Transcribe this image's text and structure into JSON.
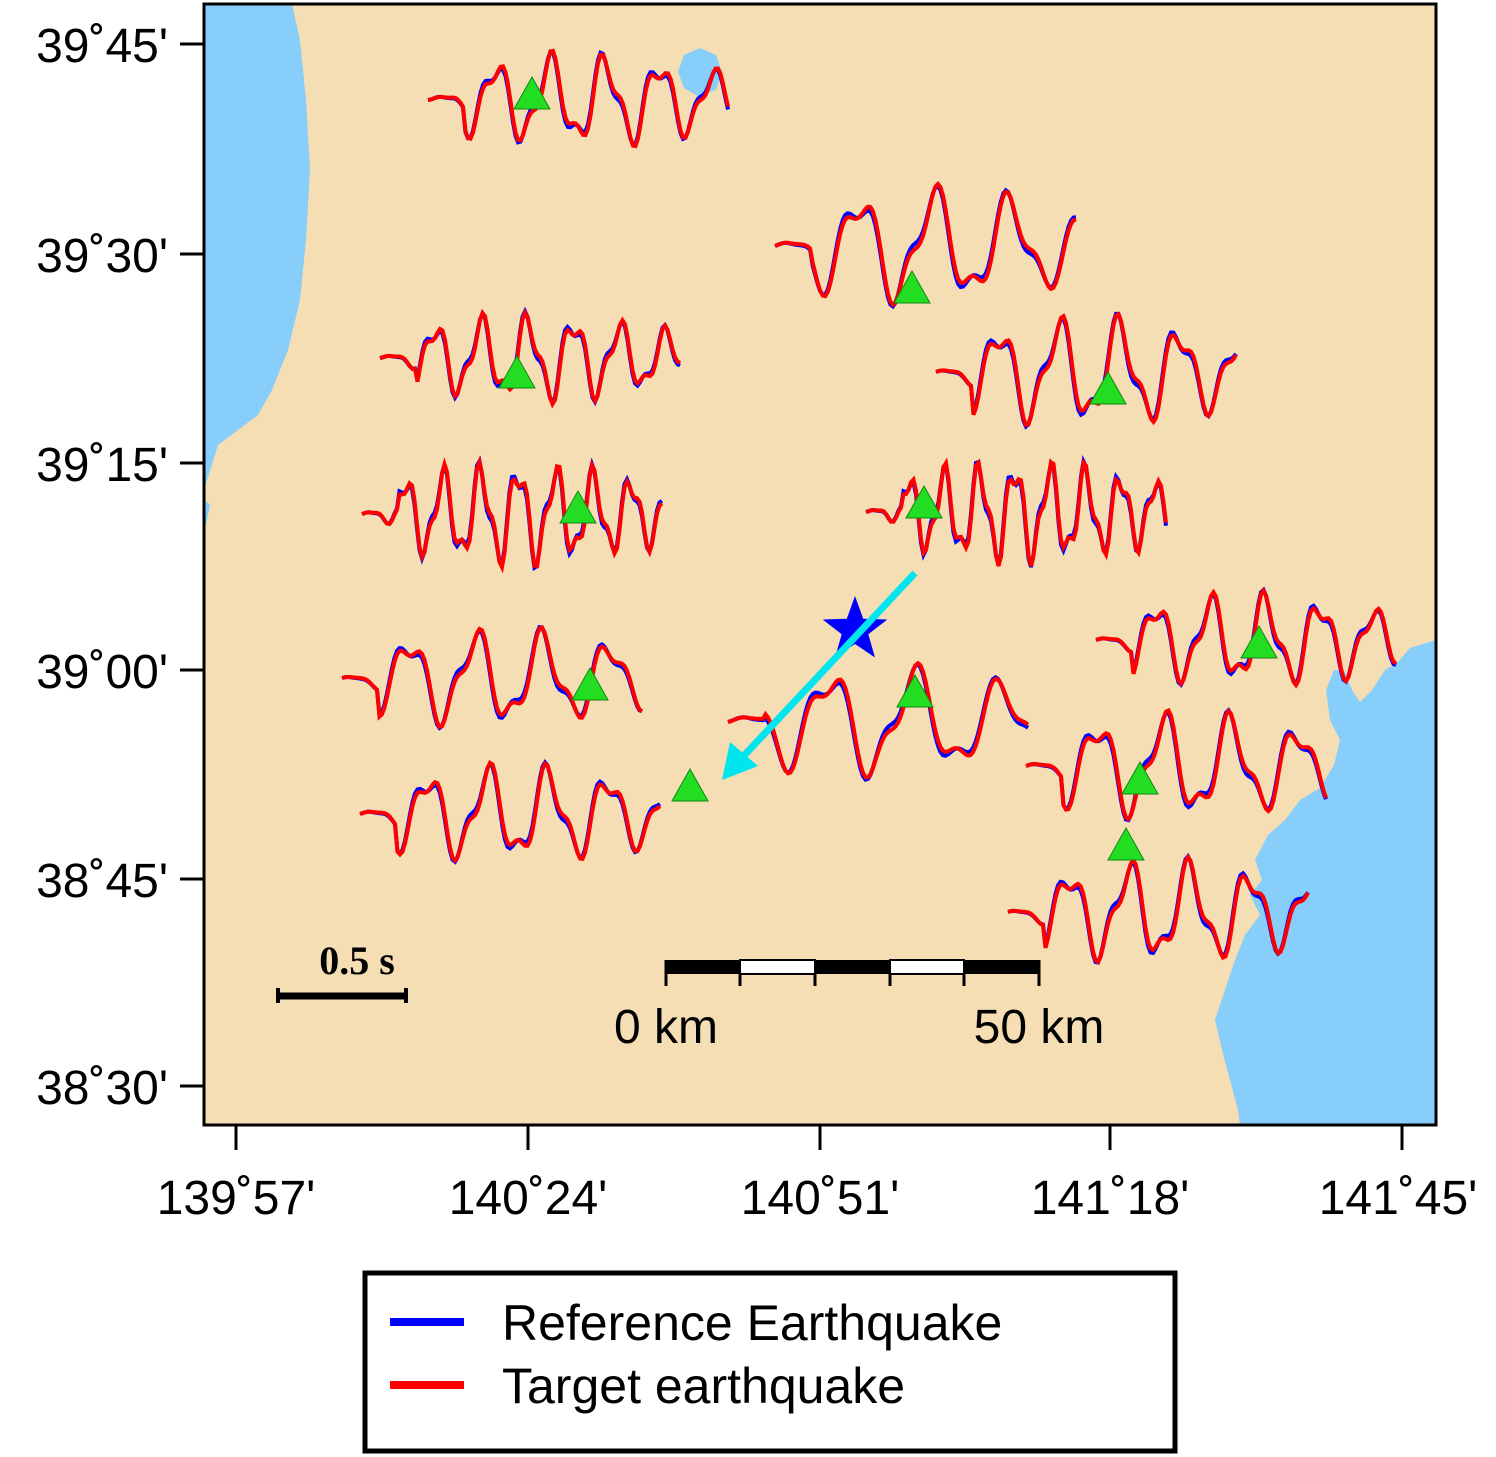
{
  "map": {
    "lat_labels": [
      "39˚45'",
      "39˚30'",
      "39˚15'",
      "39˚00'",
      "38˚45'",
      "38˚30'"
    ],
    "lon_labels": [
      "139˚57'",
      "140˚24'",
      "140˚51'",
      "141˚18'",
      "141˚45'"
    ],
    "colors": {
      "land": "#f5deb3",
      "water": "#87cefa",
      "reference": "#0000ff",
      "target": "#ff0000",
      "station": "#22dd22",
      "epicenter": "#0000ff",
      "arrow": "#00e5ee"
    },
    "time_scale": {
      "label": "0.5 s"
    },
    "distance_scale": {
      "start_label": "0 km",
      "end_label": "50 km"
    }
  },
  "legend": {
    "items": [
      {
        "label": "Reference Earthquake",
        "color": "#0000ff"
      },
      {
        "label": "Target earthquake",
        "color": "#ff0000"
      }
    ]
  }
}
